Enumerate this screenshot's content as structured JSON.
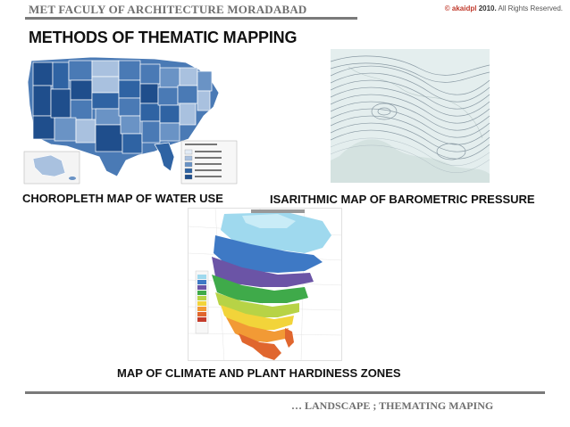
{
  "header": {
    "title": "MET FACULY OF ARCHITECTURE MORADABAD",
    "copyright_author": "© akaidpl",
    "copyright_year": "2010.",
    "copyright_text": "All Rights Reserved."
  },
  "slide": {
    "title": "METHODS OF THEMATIC MAPPING"
  },
  "figures": [
    {
      "caption": "CHOROPLETH MAP OF WATER USE"
    },
    {
      "caption": "ISARITHMIC MAP OF BAROMETRIC PRESSURE"
    },
    {
      "caption": "MAP OF CLIMATE AND PLANT HARDINESS ZONES"
    }
  ],
  "footer": {
    "text": "… LANDSCAPE ; THEMATING MAPING"
  },
  "colors": {
    "choropleth_dark": "#1f4e8c",
    "choropleth_mid": "#4a7ab5",
    "choropleth_light": "#a9c1df",
    "isobar_line": "#8a9aa4",
    "rule": "#7a7a7a"
  }
}
